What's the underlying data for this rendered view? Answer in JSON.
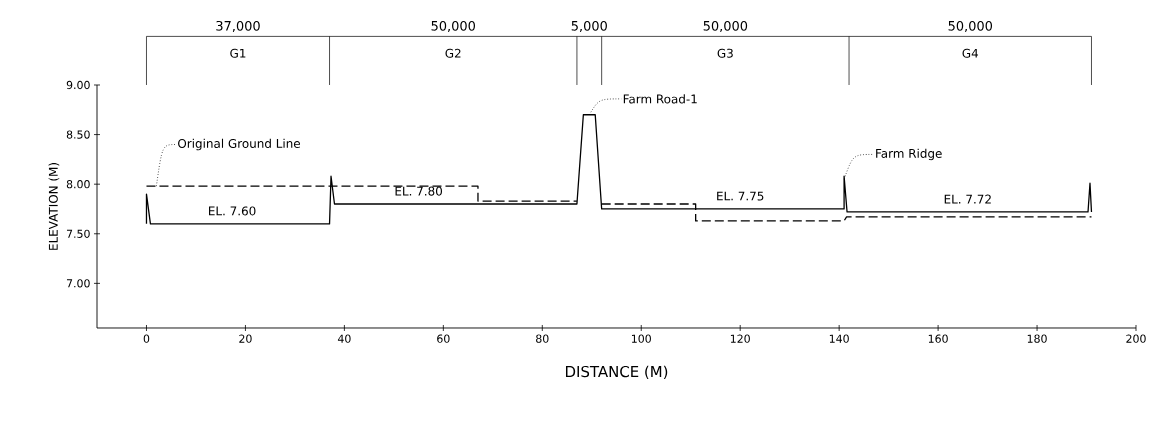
{
  "chart_data": {
    "type": "line",
    "xlabel": "DISTANCE (M)",
    "ylabel": "ELEVATION (M)",
    "xlim": [
      -10,
      200
    ],
    "ylim": [
      6.55,
      9.0
    ],
    "xticks": [
      0,
      20,
      40,
      60,
      80,
      100,
      120,
      140,
      160,
      180,
      200
    ],
    "yticks": [
      {
        "value": 7.0,
        "label": "7.00"
      },
      {
        "value": 7.5,
        "label": "7.50"
      },
      {
        "value": 8.0,
        "label": "8.00"
      },
      {
        "value": 8.5,
        "label": "8.50"
      },
      {
        "value": 9.0,
        "label": "9.00"
      }
    ],
    "marker": "none",
    "series": [
      {
        "color": "#000000",
        "line_style": "solid",
        "x": [
          0,
          0,
          0.8,
          37,
          37.3,
          38,
          87,
          88.3,
          90.7,
          92,
          141,
          141,
          141.6,
          190.3,
          190.7,
          191
        ],
        "values": [
          7.6,
          7.9,
          7.6,
          7.6,
          8.08,
          7.8,
          7.8,
          8.7,
          8.7,
          7.75,
          7.75,
          8.08,
          7.72,
          7.72,
          8.01,
          7.72
        ]
      },
      {
        "color": "#000000",
        "line_style": "dashed",
        "x": [
          0,
          67,
          67,
          87,
          89.5,
          92,
          111,
          111,
          141,
          141.5,
          191
        ],
        "values": [
          7.98,
          7.98,
          7.83,
          7.83,
          null,
          7.8,
          7.8,
          7.63,
          7.63,
          7.67,
          7.67
        ]
      }
    ],
    "annotations": [
      "37,000",
      "50,000",
      "5,000",
      "50,000",
      "50,000",
      "G1",
      "G2",
      "G3",
      "G4",
      {
        "text": "Original Ground Line",
        "x": 2,
        "y": 7.98
      },
      {
        "text": "Farm Road-1",
        "x": 89.5,
        "y": 8.7
      },
      {
        "text": "Farm Ridge",
        "x": 141,
        "y": 8.05
      },
      {
        "text": "EL. 7.60",
        "x": 17.3,
        "y": 7.6
      },
      {
        "text": "EL. 7.80",
        "x": 55,
        "y": 7.8
      },
      {
        "text": "EL. 7.75",
        "x": 120,
        "y": 7.75
      },
      {
        "text": "EL. 7.72",
        "x": 166,
        "y": 7.72
      }
    ]
  }
}
